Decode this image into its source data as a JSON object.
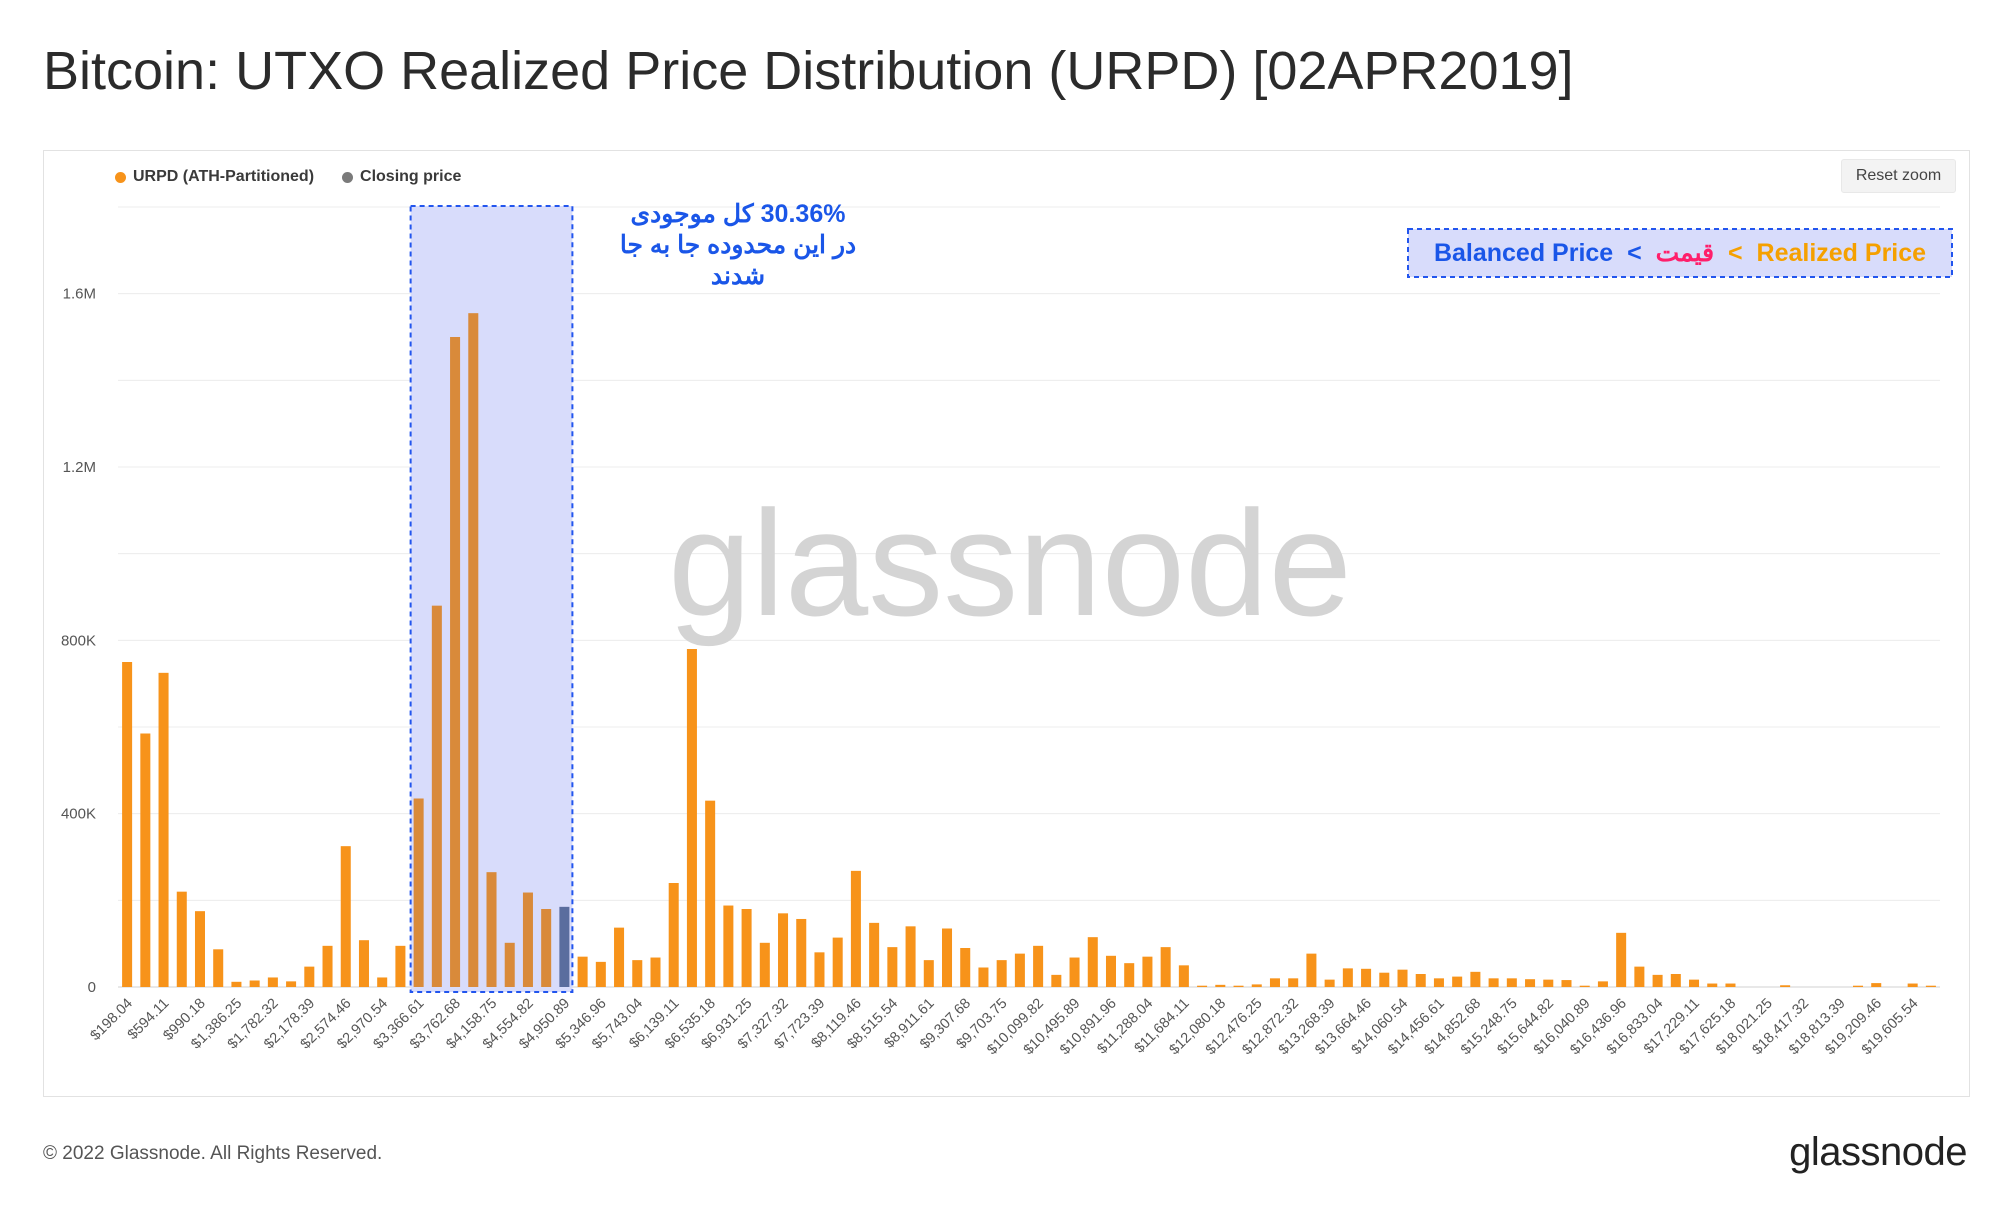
{
  "page": {
    "title": "Bitcoin: UTXO Realized Price Distribution (URPD) [02APR2019]",
    "reset_zoom": "Reset zoom",
    "copyright": "© 2022 Glassnode. All Rights Reserved.",
    "footer_logo": "glassnode",
    "watermark": "glassnode"
  },
  "legend": [
    {
      "label": "URPD (ATH-Partitioned)",
      "color": "#f7931a"
    },
    {
      "label": "Closing price",
      "color": "#7a7a7a"
    }
  ],
  "annotations": {
    "region_text": [
      "30.36%  کل موجودی",
      "در این محدوده جا به جا",
      "شدند"
    ],
    "ordering": {
      "balanced": "Balanced Price",
      "sep1": " < ",
      "price": "قیمت",
      "sep2": " < ",
      "realized": "Realized Price"
    },
    "colors": {
      "blue": "#1a56e8",
      "pink": "#ff1f6b",
      "orange": "#f5a000",
      "region_fill": "#d8dcfb"
    }
  },
  "chart_data": {
    "type": "bar",
    "title": "Bitcoin: UTXO Realized Price Distribution (URPD) [02APR2019]",
    "xlabel": "",
    "ylabel": "",
    "ylim": [
      0,
      1800000
    ],
    "yticks": [
      0,
      400000,
      800000,
      1200000,
      1600000
    ],
    "ytick_labels": [
      "0",
      "400K",
      "800K",
      "1.2M",
      "1.6M"
    ],
    "grid": true,
    "legend_position": "top-left",
    "bar_color": "#f7931a",
    "closing_price_color": "#5a6d9e",
    "closing_price_bin": 24,
    "highlight_region_bins": [
      16,
      24
    ],
    "x_tick_labels": [
      "$198.04",
      "$594.11",
      "$990.18",
      "$1,386.25",
      "$1,782.32",
      "$2,178.39",
      "$2,574.46",
      "$2,970.54",
      "$3,366.61",
      "$3,762.68",
      "$4,158.75",
      "$4,554.82",
      "$4,950.89",
      "$5,346.96",
      "$5,743.04",
      "$6,139.11",
      "$6,535.18",
      "$6,931.25",
      "$7,327.32",
      "$7,723.39",
      "$8,119.46",
      "$8,515.54",
      "$8,911.61",
      "$9,307.68",
      "$9,703.75",
      "$10,099.82",
      "$10,495.89",
      "$10,891.96",
      "$11,288.04",
      "$11,684.11",
      "$12,080.18",
      "$12,476.25",
      "$12,872.32",
      "$13,268.39",
      "$13,664.46",
      "$14,060.54",
      "$14,456.61",
      "$14,852.68",
      "$15,248.75",
      "$15,644.82",
      "$16,040.89",
      "$16,436.96",
      "$16,833.04",
      "$17,229.11",
      "$17,625.18",
      "$18,021.25",
      "$18,417.32",
      "$18,813.39",
      "$19,209.46",
      "$19,605.54"
    ],
    "values": [
      750000,
      585000,
      725000,
      220000,
      175000,
      87000,
      12000,
      15000,
      22000,
      13000,
      47000,
      95000,
      325000,
      108000,
      22000,
      95000,
      435000,
      880000,
      1500000,
      1555000,
      265000,
      102000,
      218000,
      180000,
      185000,
      70000,
      58000,
      137000,
      62000,
      68000,
      240000,
      780000,
      430000,
      188000,
      180000,
      102000,
      170000,
      157000,
      80000,
      114000,
      268000,
      148000,
      92000,
      140000,
      62000,
      135000,
      90000,
      45000,
      62000,
      77000,
      95000,
      28000,
      68000,
      115000,
      72000,
      55000,
      70000,
      92000,
      50000,
      3000,
      5000,
      3000,
      6000,
      20000,
      20000,
      77000,
      17000,
      43000,
      42000,
      33000,
      40000,
      30000,
      20000,
      24000,
      35000,
      20000,
      20000,
      18000,
      17000,
      16000,
      3000,
      13000,
      125000,
      47000,
      28000,
      30000,
      17000,
      8000,
      8000,
      0,
      0,
      4000,
      0,
      0,
      0,
      3000,
      9000,
      0,
      8000,
      3000
    ]
  }
}
